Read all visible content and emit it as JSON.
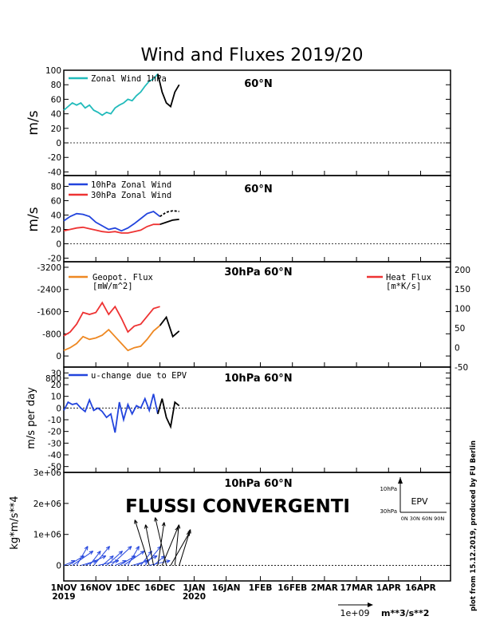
{
  "title": "Wind and Fluxes 2019/20",
  "credit": "plot from 15.12.2019, produced by FU Berlin",
  "overlay_text": "FLUSSI CONVERGENTI",
  "x_axis": {
    "ticks": [
      "1NOV",
      "16NOV",
      "1DEC",
      "16DEC",
      "1JAN",
      "16JAN",
      "1FEB",
      "16FEB",
      "2MAR",
      "17MAR",
      "1APR",
      "16APR"
    ],
    "years": [
      "2019",
      "2020"
    ],
    "range": [
      "1NOV",
      "30APR"
    ]
  },
  "panels": [
    {
      "key": "p1",
      "ylabel": "m/s",
      "location": "60°N",
      "ylim": [
        -45,
        100
      ],
      "ticks": [
        "100",
        "80",
        "60",
        "40",
        "20",
        "0",
        "-20",
        "-40"
      ],
      "legend": [
        "Zonal Wind 1hPa"
      ]
    },
    {
      "key": "p2",
      "ylabel": "m/s",
      "location": "60°N",
      "ylim": [
        -25,
        95
      ],
      "ticks": [
        "80",
        "60",
        "40",
        "20",
        "0",
        "-20"
      ],
      "legend": [
        "10hPa Zonal Wind",
        "30hPa Zonal Wind"
      ]
    },
    {
      "key": "p3",
      "ylabel": "",
      "location": "30hPa 60°N",
      "ylim_left": [
        -3400,
        400
      ],
      "ylim_right": [
        -50,
        220
      ],
      "ticks": [
        "-3200",
        "-2400",
        "-1600",
        "-800",
        "0",
        "800"
      ],
      "ticks_right": [
        "200",
        "150",
        "100",
        "50",
        "0",
        "-50"
      ],
      "legend": [
        "Geopot. Flux",
        "[mW/m^2]"
      ],
      "legend_right": [
        "Heat Flux",
        "[m*K/s]"
      ]
    },
    {
      "key": "p4",
      "ylabel": "m/s per day",
      "location": "10hPa 60°N",
      "ylim": [
        -55,
        35
      ],
      "ticks": [
        "30",
        "20",
        "10",
        "0",
        "-10",
        "-20",
        "-30",
        "-40",
        "-50"
      ],
      "legend": [
        "u-change due to EPV"
      ]
    },
    {
      "key": "p5",
      "ylabel": "kg*m/s**4",
      "location": "10hPa 60°N",
      "ylim": [
        -0.5,
        3
      ],
      "ticks": [
        "3e+06",
        "2e+06",
        "1e+06",
        "0"
      ],
      "epv_legend": {
        "label": "EPV",
        "y_top": "10hPa",
        "y_bottom": "30hPa",
        "x_axis": "0N 30N 60N 90N"
      },
      "scale": [
        "1e+09",
        "m**3/s**2"
      ]
    }
  ],
  "colors": {
    "cyan": "#22bbbb",
    "blue": "#2244dd",
    "red": "#ee3333",
    "orange": "#ee8822",
    "black": "#000000"
  },
  "chart_data": [
    {
      "type": "line",
      "title": "Zonal Wind 1hPa 60°N",
      "ylabel": "m/s",
      "ylim": [
        -45,
        100
      ],
      "series": [
        {
          "name": "Zonal Wind 1hPa",
          "color": "#22bbbb",
          "x": [
            0,
            2,
            4,
            6,
            8,
            10,
            12,
            14,
            16,
            18,
            20,
            22,
            24,
            26,
            28,
            30,
            32,
            34,
            36,
            38,
            40,
            42,
            44
          ],
          "values": [
            45,
            50,
            55,
            52,
            55,
            48,
            52,
            45,
            42,
            38,
            42,
            40,
            48,
            52,
            55,
            60,
            58,
            65,
            70,
            78,
            85,
            88,
            95
          ]
        },
        {
          "name": "forecast",
          "color": "#000000",
          "x": [
            44,
            46,
            48,
            50,
            52,
            54
          ],
          "values": [
            95,
            70,
            55,
            50,
            70,
            80
          ]
        }
      ]
    },
    {
      "type": "line",
      "title": "10hPa/30hPa Zonal Wind 60°N",
      "ylabel": "m/s",
      "ylim": [
        -25,
        95
      ],
      "series": [
        {
          "name": "10hPa Zonal Wind",
          "color": "#2244dd",
          "x": [
            0,
            3,
            6,
            9,
            12,
            15,
            18,
            21,
            24,
            27,
            30,
            33,
            36,
            39,
            42,
            45
          ],
          "values": [
            32,
            38,
            42,
            41,
            38,
            30,
            25,
            20,
            22,
            18,
            22,
            28,
            35,
            42,
            45,
            38
          ]
        },
        {
          "name": "30hPa Zonal Wind",
          "color": "#ee3333",
          "x": [
            0,
            3,
            6,
            9,
            12,
            15,
            18,
            21,
            24,
            27,
            30,
            33,
            36,
            39,
            42,
            45
          ],
          "values": [
            18,
            20,
            22,
            23,
            21,
            19,
            17,
            16,
            17,
            15,
            15,
            17,
            19,
            24,
            27,
            27
          ]
        },
        {
          "name": "10hPa forecast",
          "color": "#000000",
          "dashed": true,
          "x": [
            45,
            48,
            51,
            54
          ],
          "values": [
            38,
            44,
            46,
            45
          ]
        },
        {
          "name": "30hPa forecast",
          "color": "#000000",
          "x": [
            45,
            48,
            51,
            54
          ],
          "values": [
            27,
            30,
            33,
            34
          ]
        }
      ]
    },
    {
      "type": "line",
      "title": "30hPa 60°N fluxes",
      "ylabel": "",
      "ylim": [
        -3400,
        400
      ],
      "series": [
        {
          "name": "Geopot. Flux",
          "color": "#ee8822",
          "x": [
            0,
            3,
            6,
            9,
            12,
            15,
            18,
            21,
            24,
            27,
            30,
            33,
            36,
            39,
            42,
            45
          ],
          "values": [
            -200,
            -300,
            -450,
            -700,
            -600,
            -650,
            -750,
            -950,
            -700,
            -450,
            -200,
            -300,
            -350,
            -600,
            -900,
            -1100
          ]
        },
        {
          "name": "Heat Flux",
          "color": "#ee3333",
          "x": [
            0,
            3,
            6,
            9,
            12,
            15,
            18,
            21,
            24,
            27,
            30,
            33,
            36,
            39,
            42,
            45
          ],
          "values": [
            30,
            40,
            60,
            90,
            85,
            90,
            115,
            85,
            105,
            75,
            40,
            55,
            60,
            80,
            100,
            105
          ]
        },
        {
          "name": "forecast",
          "color": "#000000",
          "x": [
            45,
            48,
            51,
            54
          ],
          "values": [
            -1100,
            -1400,
            -700,
            -900
          ]
        }
      ]
    },
    {
      "type": "line",
      "title": "u-change due to EPV 10hPa 60°N",
      "ylabel": "m/s per day",
      "ylim": [
        -55,
        35
      ],
      "series": [
        {
          "name": "u-change due to EPV",
          "color": "#2244dd",
          "x": [
            0,
            2,
            4,
            6,
            8,
            10,
            12,
            14,
            16,
            18,
            20,
            22,
            24,
            26,
            28,
            30,
            32,
            34,
            36,
            38,
            40,
            42,
            44
          ],
          "values": [
            -2,
            5,
            3,
            4,
            0,
            -3,
            7,
            -2,
            0,
            -3,
            -8,
            -5,
            -21,
            5,
            -10,
            3,
            -5,
            2,
            0,
            8,
            -2,
            12,
            -5
          ]
        },
        {
          "name": "forecast",
          "color": "#000000",
          "x": [
            44,
            46,
            48,
            50,
            52,
            54
          ],
          "values": [
            -5,
            8,
            -8,
            -16,
            5,
            2
          ]
        }
      ]
    },
    {
      "type": "scatter",
      "title": "EPV vectors 10hPa 60°N",
      "ylabel": "kg*m/s**4",
      "ylim": [
        -0.5,
        3
      ],
      "series": [
        {
          "name": "EPV",
          "color": "#2244dd",
          "x": [
            0,
            5,
            10,
            15,
            20,
            25,
            30,
            35,
            40
          ],
          "values": [
            0,
            0,
            0,
            0,
            0,
            0,
            0,
            0,
            0
          ]
        },
        {
          "name": "forecast",
          "color": "#000000",
          "x": [
            40,
            45,
            50,
            55
          ],
          "values": [
            0,
            0,
            0,
            0
          ]
        }
      ]
    }
  ]
}
